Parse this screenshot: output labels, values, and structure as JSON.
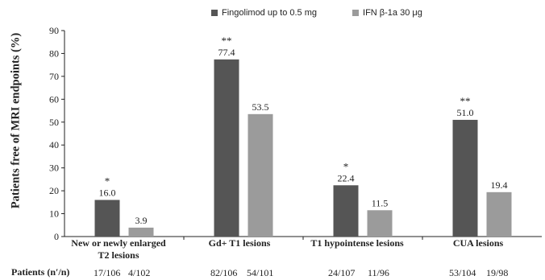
{
  "legend": [
    {
      "label": "Fingolimod up to 0.5 mg",
      "color": "#555555"
    },
    {
      "label": "IFN β-1a 30 μg",
      "color": "#9b9b9b"
    }
  ],
  "chart_data": {
    "type": "bar",
    "ylabel": "Patients free of MRI endpoints (%)",
    "ylim": [
      0,
      90
    ],
    "yticks": [
      0,
      10,
      20,
      30,
      40,
      50,
      60,
      70,
      80,
      90
    ],
    "categories": [
      [
        "New or newly enlarged",
        "T2 lesions"
      ],
      [
        "Gd+ T1 lesions"
      ],
      [
        "T1 hypointense lesions"
      ],
      [
        "CUA lesions"
      ]
    ],
    "series": [
      {
        "name": "Fingolimod up to 0.5 mg",
        "values": [
          16.0,
          77.4,
          22.4,
          51.0
        ],
        "labels": [
          "16.0",
          "77.4",
          "22.4",
          "51.0"
        ],
        "significance": [
          "*",
          "**",
          "*",
          "**"
        ],
        "color": "#555555"
      },
      {
        "name": "IFN β-1a 30 μg",
        "values": [
          3.9,
          53.5,
          11.5,
          19.4
        ],
        "labels": [
          "3.9",
          "53.5",
          "11.5",
          "19.4"
        ],
        "significance": [
          "",
          "",
          "",
          ""
        ],
        "color": "#9b9b9b"
      }
    ],
    "grid": false,
    "legend_position": "top"
  },
  "patients": {
    "label": "Patients (n′/n)",
    "values": [
      [
        "17/106",
        "4/102"
      ],
      [
        "82/106",
        "54/101"
      ],
      [
        "24/107",
        "11/96"
      ],
      [
        "53/104",
        "19/98"
      ]
    ]
  }
}
